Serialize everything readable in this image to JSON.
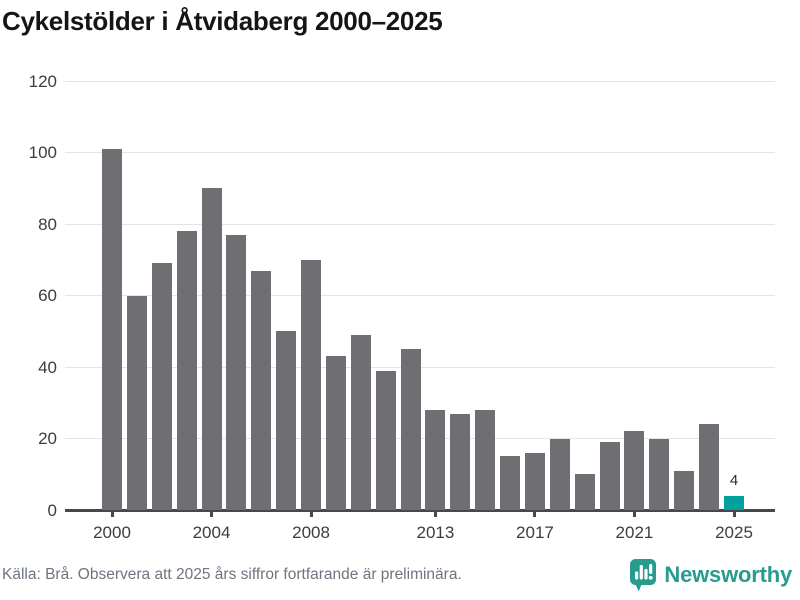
{
  "header": {
    "title": "Cykelstölder i Åtvidaberg 2000–2025"
  },
  "chart_data": {
    "type": "bar",
    "title": "Cykelstölder i Åtvidaberg 2000–2025",
    "categories": [
      2000,
      2001,
      2002,
      2003,
      2004,
      2005,
      2006,
      2007,
      2008,
      2009,
      2010,
      2011,
      2012,
      2013,
      2014,
      2015,
      2016,
      2017,
      2018,
      2019,
      2020,
      2021,
      2022,
      2023,
      2024,
      2025
    ],
    "values": [
      101,
      60,
      69,
      78,
      90,
      77,
      67,
      50,
      70,
      43,
      49,
      39,
      45,
      28,
      27,
      28,
      15,
      16,
      20,
      10,
      19,
      22,
      20,
      11,
      24,
      4
    ],
    "ylim": [
      0,
      120
    ],
    "yticks": [
      0,
      20,
      40,
      60,
      80,
      100,
      120
    ],
    "xtick_labels": [
      "2000",
      "2004",
      "2008",
      "2013",
      "2017",
      "2021",
      "2025"
    ],
    "xtick_indices": [
      0,
      4,
      8,
      13,
      17,
      21,
      25
    ],
    "grid": "horizontal",
    "legend": "none",
    "bar_color": "#6f6e73",
    "highlight_index": 25,
    "highlight_color": "#00a29b",
    "highlight_value_label": "4"
  },
  "footer": {
    "source_note": "Källa: Brå. Observera att 2025 års siffror fortfarande är preliminära."
  },
  "branding": {
    "logo_text": "Newsworthy",
    "logo_color": "#279b8e",
    "logo_icon": "bar-chart-speech-bubble"
  }
}
